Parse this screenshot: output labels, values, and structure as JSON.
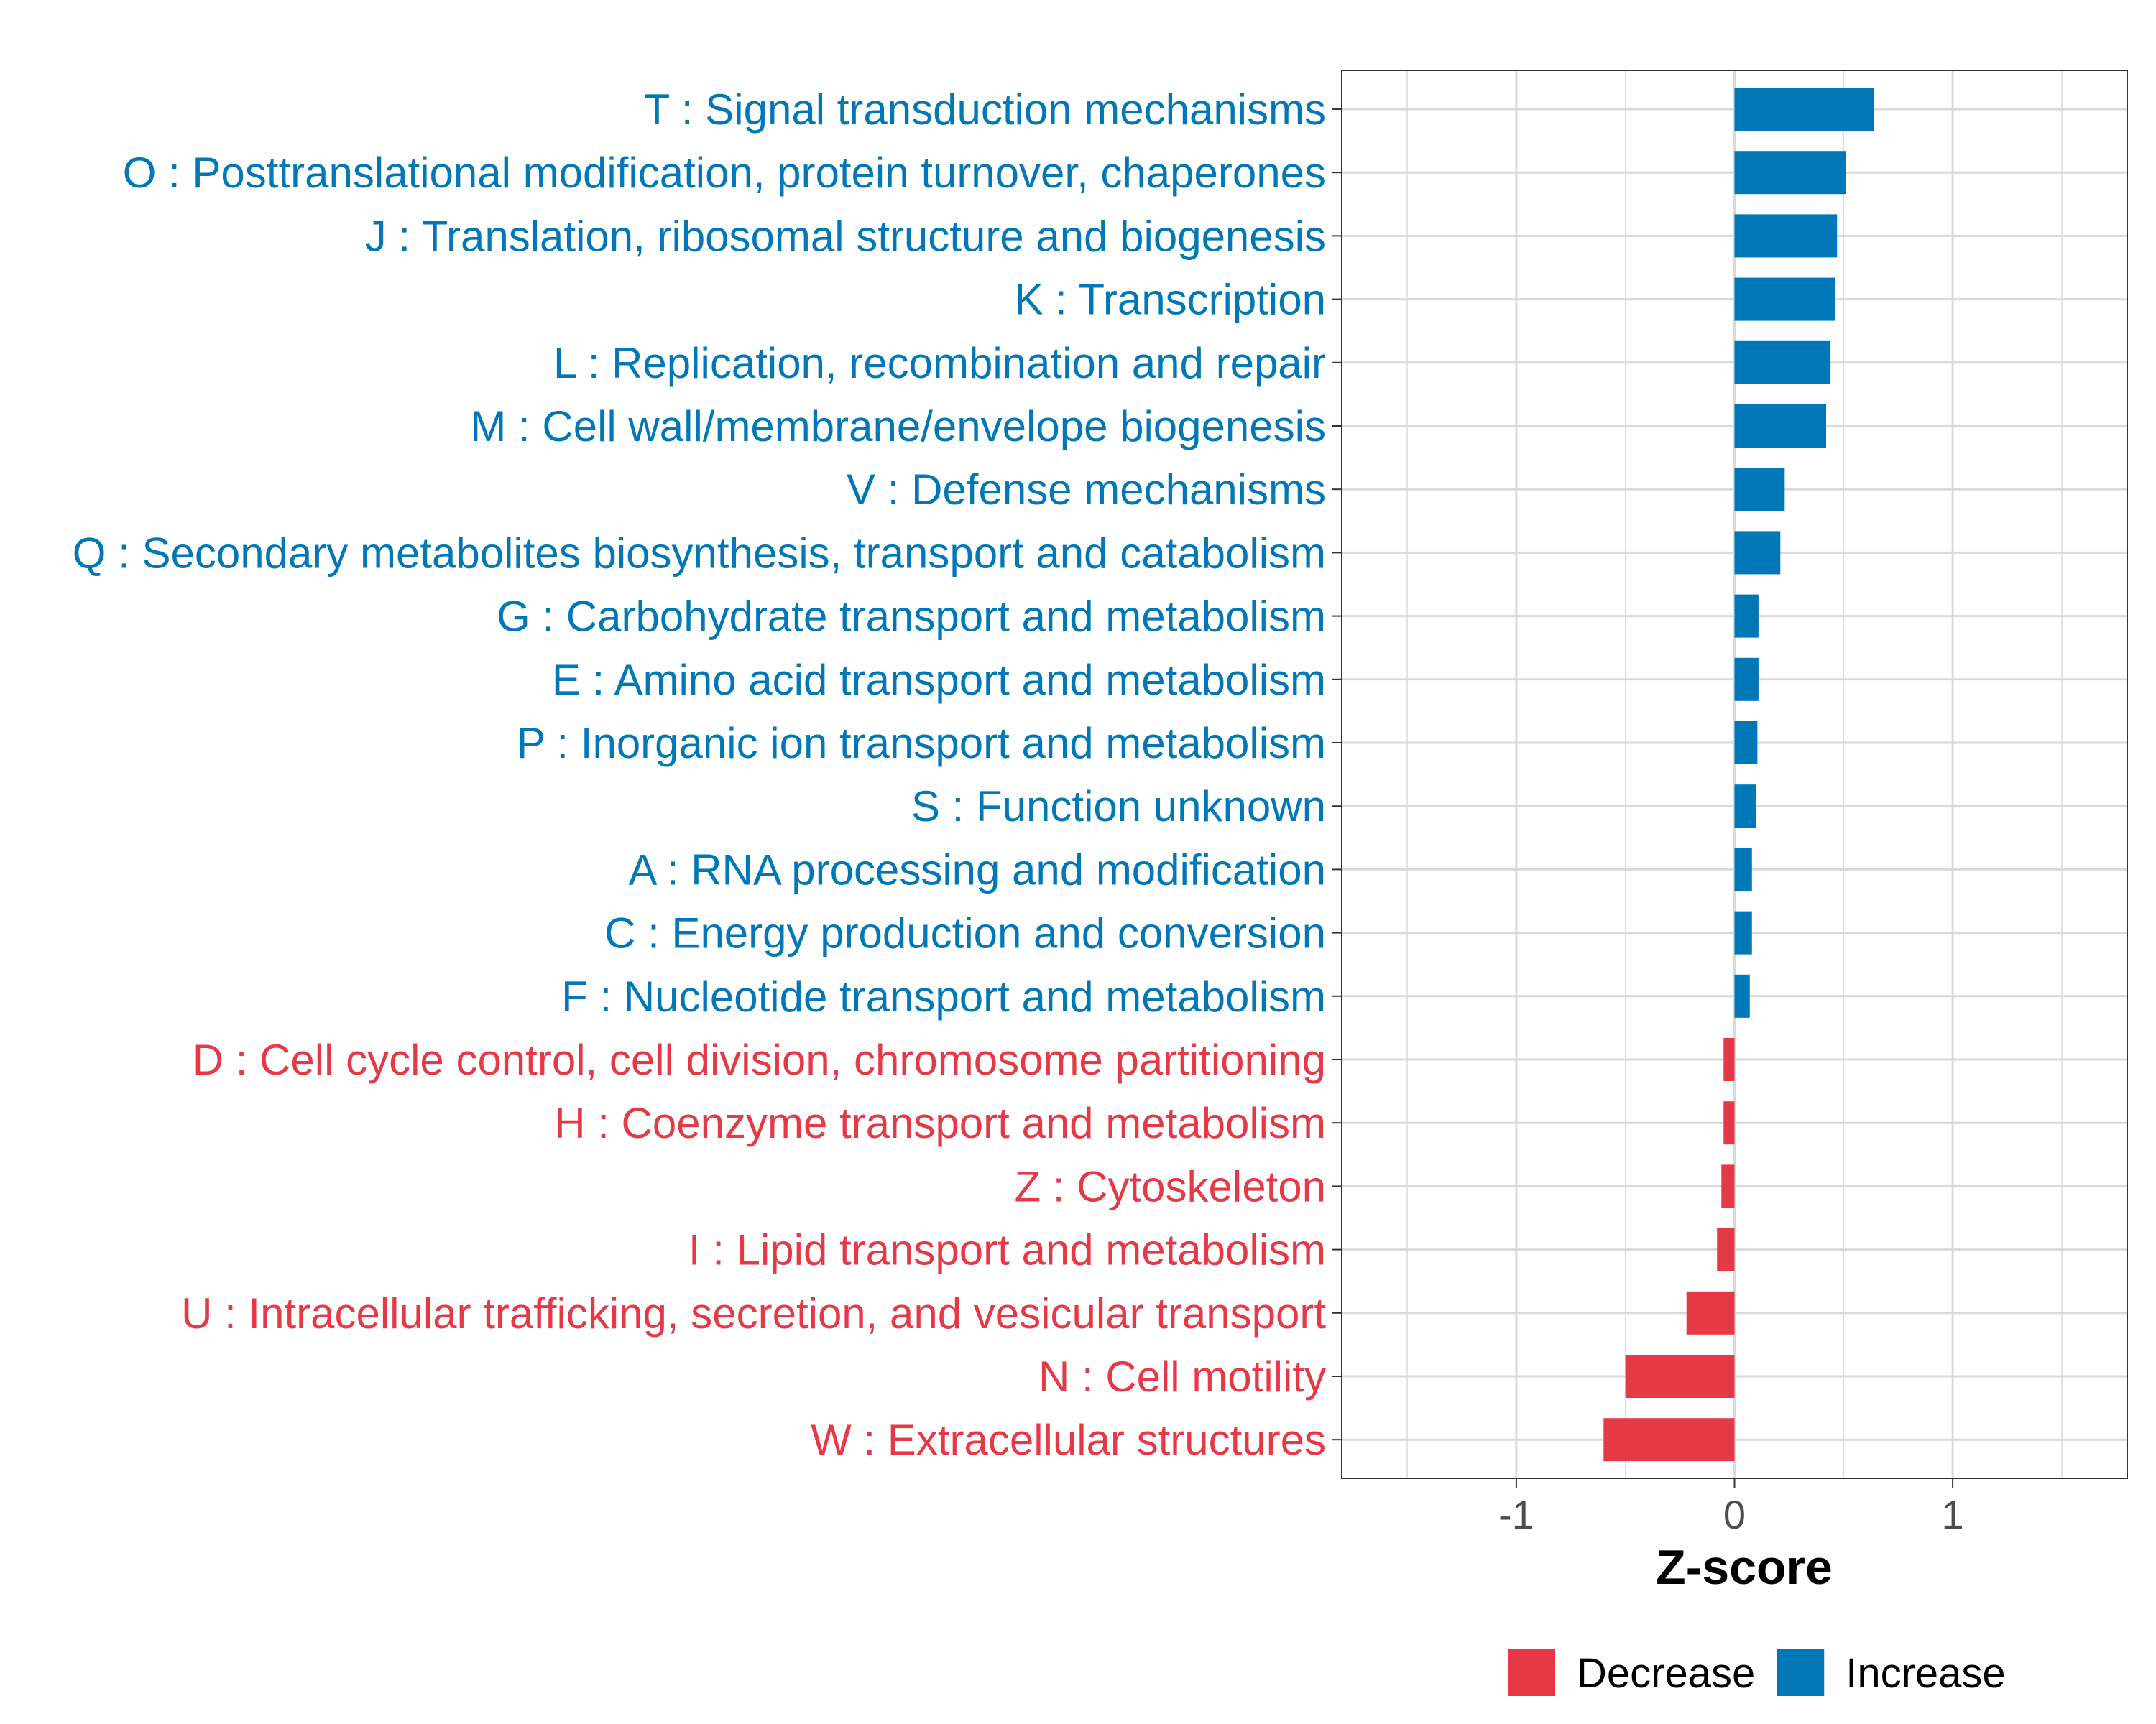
{
  "colors": {
    "increase": "#0077b6",
    "decrease": "#e63946",
    "grid": "#d9d9d9",
    "panel_border": "#333333"
  },
  "chart_data": {
    "type": "bar",
    "orientation": "horizontal",
    "xlabel": "Z-score",
    "xlim": [
      -1.8,
      1.8
    ],
    "xticks": [
      -1,
      0,
      1
    ],
    "xtick_labels": [
      "-1",
      "0",
      "1"
    ],
    "categories": [
      "T : Signal transduction mechanisms",
      "O : Posttranslational modification, protein turnover, chaperones",
      "J : Translation, ribosomal structure and biogenesis",
      "K : Transcription",
      "L : Replication, recombination and repair",
      "M : Cell wall/membrane/envelope biogenesis",
      "V : Defense mechanisms",
      "Q : Secondary metabolites biosynthesis, transport and catabolism",
      "G : Carbohydrate transport and metabolism",
      "E : Amino acid transport and metabolism",
      "P : Inorganic ion transport and metabolism",
      "S : Function unknown",
      "A : RNA processing and modification",
      "C : Energy production and conversion",
      "F : Nucleotide transport and metabolism",
      "D : Cell cycle control, cell division, chromosome partitioning",
      "H : Coenzyme transport and metabolism",
      "Z : Cytoskeleton",
      "I : Lipid transport and metabolism",
      "U : Intracellular trafficking, secretion, and vesicular transport",
      "N : Cell motility",
      "W : Extracellular structures"
    ],
    "values": [
      0.64,
      0.51,
      0.47,
      0.46,
      0.44,
      0.42,
      0.23,
      0.21,
      0.11,
      0.11,
      0.105,
      0.1,
      0.08,
      0.08,
      0.07,
      -0.05,
      -0.05,
      -0.06,
      -0.08,
      -0.22,
      -0.5,
      -0.6
    ],
    "legend": {
      "position": "bottom",
      "entries": [
        {
          "name": "Decrease",
          "color": "#e63946"
        },
        {
          "name": "Increase",
          "color": "#0077b6"
        }
      ]
    }
  }
}
